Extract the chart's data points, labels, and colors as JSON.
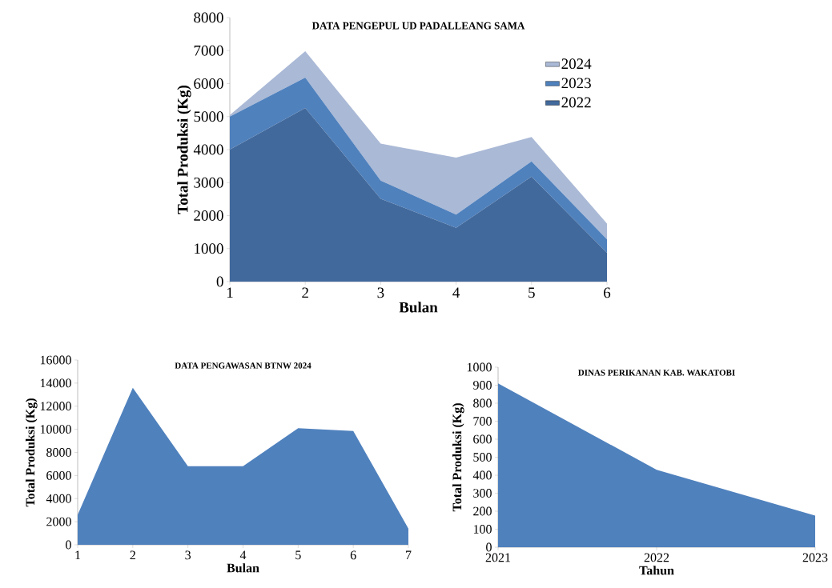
{
  "chart_data": [
    {
      "type": "area",
      "title": "DATA PENGEPUL UD PADALLEANG SAMA",
      "xlabel": "Bulan",
      "ylabel": "Total Produksi (Kg)",
      "stacked": true,
      "legend": "right",
      "x": [
        1,
        2,
        3,
        4,
        5,
        6
      ],
      "xlim": [
        1,
        6
      ],
      "xticks": [
        1,
        2,
        3,
        4,
        5,
        6
      ],
      "ylim": [
        0,
        8000
      ],
      "yticks": [
        0,
        1000,
        2000,
        3000,
        4000,
        5000,
        6000,
        7000,
        8000
      ],
      "series": [
        {
          "name": "2022",
          "color": "#41699c",
          "values": [
            4000,
            5260,
            2510,
            1630,
            3180,
            870
          ]
        },
        {
          "name": "2023",
          "color": "#4f81bd",
          "values": [
            1000,
            920,
            550,
            400,
            460,
            410
          ]
        },
        {
          "name": "2024",
          "color": "#aab9d6",
          "values": [
            50,
            800,
            1120,
            1730,
            740,
            480
          ]
        }
      ]
    },
    {
      "type": "area",
      "title": "DATA PENGAWASAN BTNW 2024",
      "xlabel": "Bulan",
      "ylabel": "Total Produksi (Kg)",
      "color": "#4f81bd",
      "x": [
        1,
        2,
        3,
        4,
        5,
        6,
        7
      ],
      "values": [
        2600,
        13600,
        6800,
        6800,
        10100,
        9850,
        1400
      ],
      "xlim": [
        1,
        7
      ],
      "xticks": [
        1,
        2,
        3,
        4,
        5,
        6,
        7
      ],
      "ylim": [
        0,
        16000
      ],
      "yticks": [
        0,
        2000,
        4000,
        6000,
        8000,
        10000,
        12000,
        14000,
        16000
      ]
    },
    {
      "type": "area",
      "title": "DINAS PERIKANAN KAB. WAKATOBI",
      "xlabel": "Tahun",
      "ylabel": "Total Produksi (Kg)",
      "color": "#4f81bd",
      "x": [
        2021,
        2022,
        2023
      ],
      "values": [
        910,
        430,
        175
      ],
      "xlim": [
        2021,
        2023
      ],
      "xticks": [
        2021,
        2022,
        2023
      ],
      "ylim": [
        0,
        1000
      ],
      "yticks": [
        0,
        100,
        200,
        300,
        400,
        500,
        600,
        700,
        800,
        900,
        1000
      ]
    }
  ]
}
